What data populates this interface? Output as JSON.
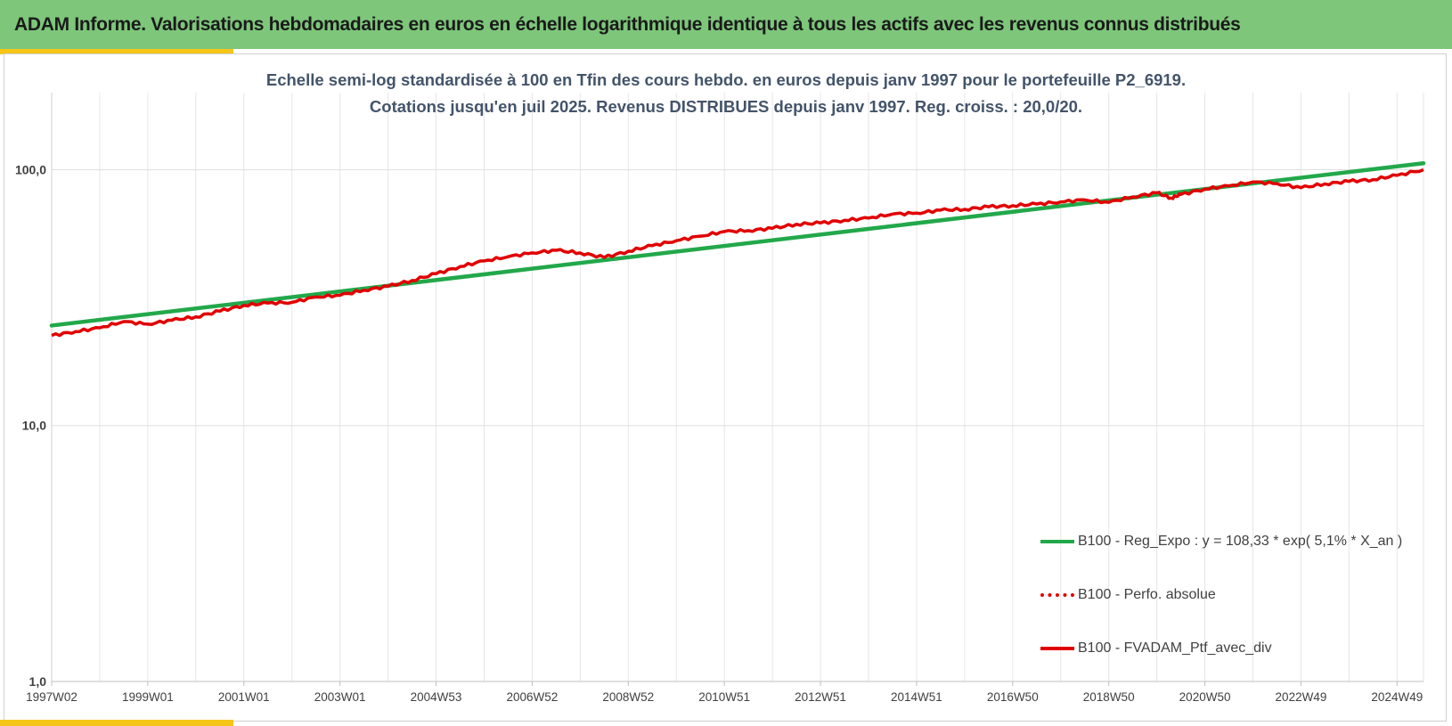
{
  "header": {
    "title": "ADAM Informe. Valorisations hebdomadaires en euros en échelle logarithmique identique à tous les actifs avec les revenus connus distribués"
  },
  "chart_data": {
    "type": "line",
    "title_line1": "Echelle semi-log standardisée  à 100 en Tfin des cours hebdo.  en euros depuis janv 1997 pour le portefeuille P2_6919.",
    "title_line2": "Cotations jusqu'en juil 2025. Revenus DISTRIBUES depuis janv 1997. Reg. croiss. : 20,0/20.",
    "y_scale": "log",
    "ylim": [
      1,
      200
    ],
    "y_ticks": [
      {
        "value": 1,
        "label": "1,0"
      },
      {
        "value": 10,
        "label": "10,0"
      },
      {
        "value": 100,
        "label": "100,0"
      }
    ],
    "x_ticks": [
      "1997W02",
      "1999W01",
      "2001W01",
      "2003W01",
      "2004W53",
      "2006W52",
      "2008W52",
      "2010W51",
      "2012W51",
      "2014W51",
      "2016W50",
      "2018W50",
      "2020W50",
      "2022W49",
      "2024W49"
    ],
    "x_tick_years": [
      1997.0,
      1999.0,
      2001.0,
      2003.0,
      2005.0,
      2007.0,
      2009.0,
      2011.0,
      2013.0,
      2015.0,
      2017.0,
      2019.0,
      2021.0,
      2023.0,
      2025.0
    ],
    "xlim": [
      1997.0,
      2025.55
    ],
    "grid": true,
    "legend_position": "bottom-right",
    "series": [
      {
        "name": "B100 - Reg_Expo : y = 108,33 * exp( 5,1% *  X_an )",
        "color": "#22a84a",
        "style": "solid",
        "x": [
          1997.0,
          2025.55
        ],
        "y": [
          24.6,
          106.0
        ]
      },
      {
        "name": "B100 - Perfo. absolue",
        "color": "#e00000",
        "style": "dotted",
        "x": [],
        "y": []
      },
      {
        "name": "B100 - FVADAM_Ptf_avec_div",
        "color": "#e00000",
        "style": "solid",
        "x": [
          1997.0,
          1997.5,
          1998.0,
          1998.5,
          1999.0,
          1999.5,
          2000.0,
          2000.5,
          2001.0,
          2001.5,
          2002.0,
          2002.5,
          2003.0,
          2003.5,
          2004.0,
          2004.5,
          2005.0,
          2005.5,
          2006.0,
          2006.5,
          2007.0,
          2007.5,
          2008.0,
          2008.5,
          2009.0,
          2009.5,
          2010.0,
          2010.5,
          2011.0,
          2011.5,
          2012.0,
          2012.5,
          2013.0,
          2013.5,
          2014.0,
          2014.5,
          2015.0,
          2015.5,
          2016.0,
          2016.5,
          2017.0,
          2017.5,
          2018.0,
          2018.5,
          2019.0,
          2019.5,
          2020.0,
          2020.3,
          2020.5,
          2021.0,
          2021.5,
          2022.0,
          2022.5,
          2023.0,
          2023.5,
          2024.0,
          2024.5,
          2025.0,
          2025.55
        ],
        "y": [
          22.5,
          23.3,
          24.1,
          25.5,
          24.9,
          25.8,
          26.6,
          28.0,
          29.5,
          30.1,
          30.3,
          31.8,
          32.3,
          33.8,
          35.0,
          36.9,
          39.2,
          41.8,
          44.0,
          45.7,
          47.3,
          48.4,
          47.3,
          45.4,
          48.0,
          50.5,
          52.8,
          55.0,
          57.3,
          57.8,
          59.0,
          61.2,
          61.9,
          63.4,
          64.7,
          67.1,
          67.6,
          69.5,
          70.0,
          71.6,
          72.3,
          73.4,
          74.8,
          76.2,
          74.5,
          78.3,
          81.2,
          77.5,
          80.0,
          84.0,
          86.4,
          89.5,
          88.2,
          85.0,
          88.0,
          90.0,
          91.5,
          95.0,
          100.0
        ]
      }
    ]
  }
}
